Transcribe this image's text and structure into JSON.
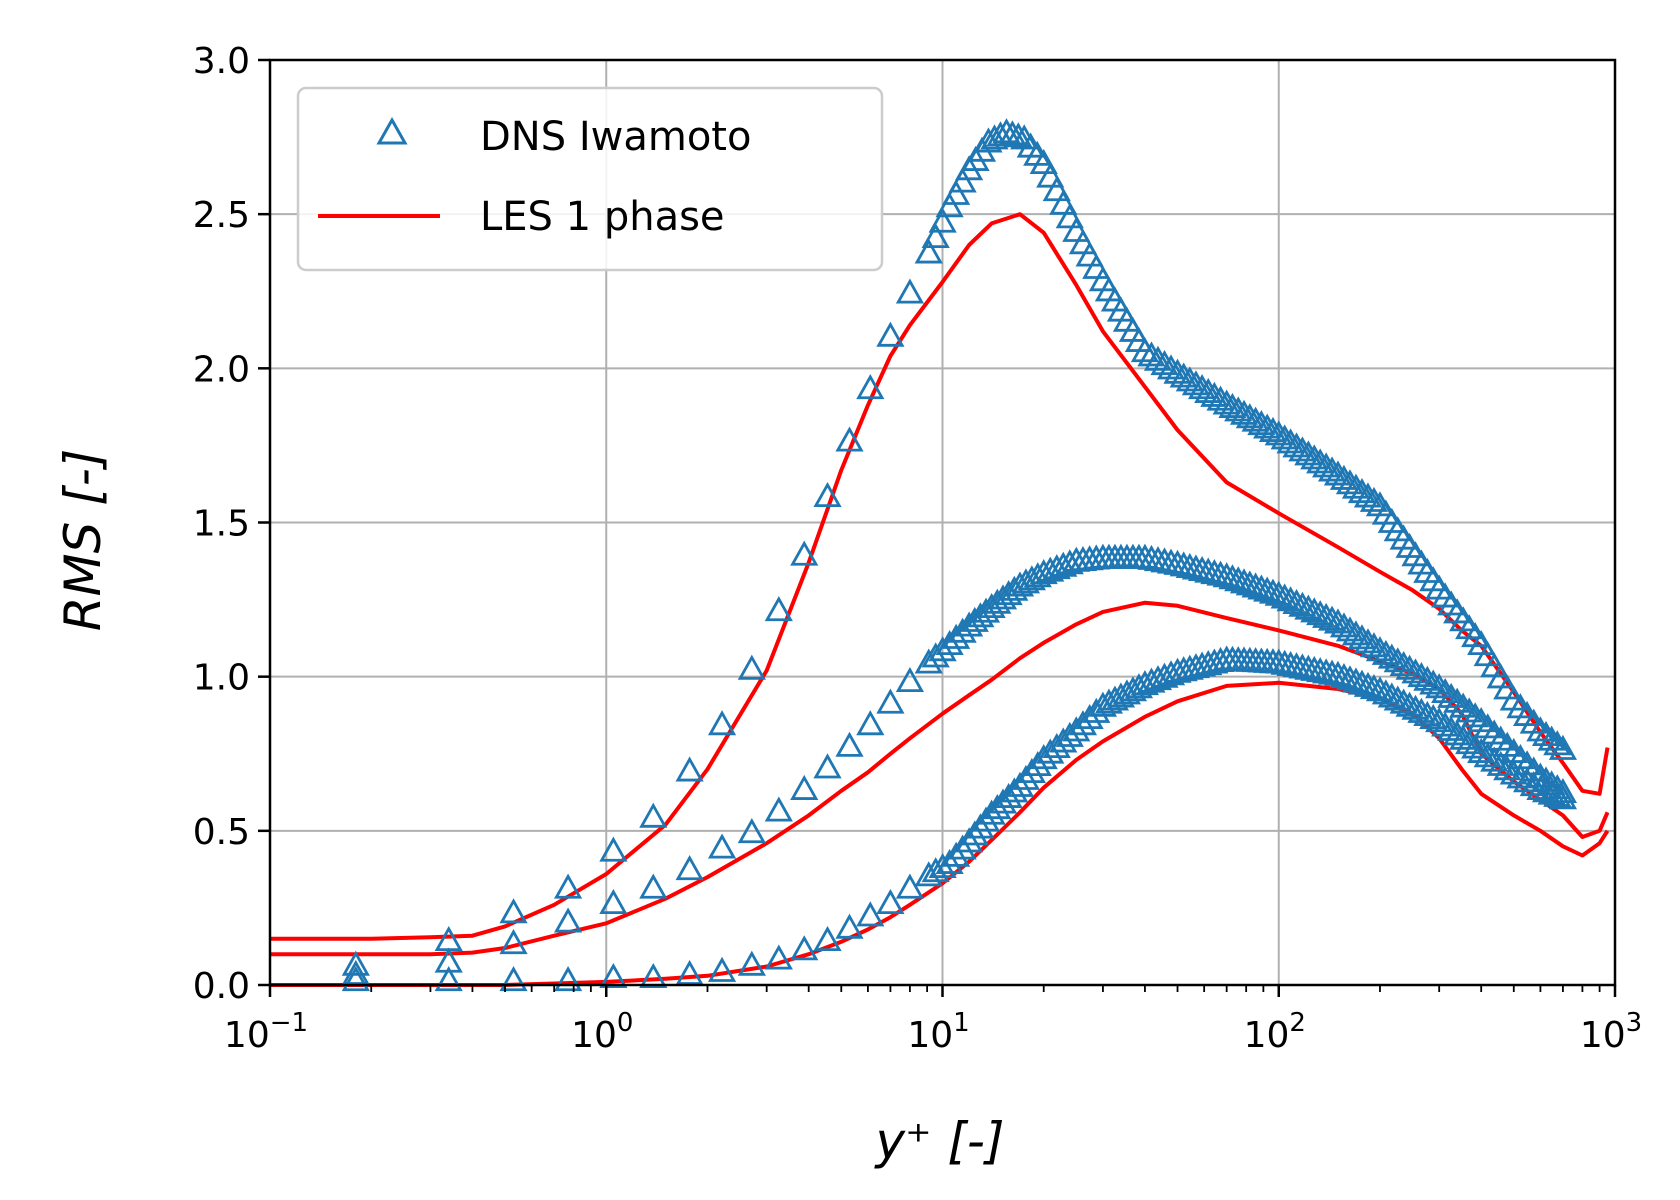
{
  "chart_data": {
    "type": "scatter",
    "xlabel": "y⁺ [-]",
    "ylabel": "RMS [-]",
    "x_scale": "log",
    "xlim": [
      0.1,
      1000
    ],
    "ylim": [
      0,
      3.0
    ],
    "grid": true,
    "legend_position": "top-left",
    "x_ticks": [
      {
        "base": "10",
        "exp": "−1",
        "value": 0.1
      },
      {
        "base": "10",
        "exp": "0",
        "value": 1
      },
      {
        "base": "10",
        "exp": "1",
        "value": 10
      },
      {
        "base": "10",
        "exp": "2",
        "value": 100
      },
      {
        "base": "10",
        "exp": "3",
        "value": 1000
      }
    ],
    "y_ticks": [
      "0.0",
      "0.5",
      "1.0",
      "1.5",
      "2.0",
      "2.5",
      "3.0"
    ],
    "legend": [
      {
        "label": "DNS Iwamoto",
        "marker": "triangle",
        "color": "#1f77b4"
      },
      {
        "label": "LES 1 phase",
        "marker": "line",
        "color": "#ff0000"
      }
    ],
    "series": [
      {
        "name": "DNS Iwamoto",
        "kind": "markers",
        "color": "#1f77b4",
        "curves": [
          {
            "x": [
              0.18,
              0.34,
              0.53,
              0.77,
              1.05,
              1.38,
              1.77,
              2.21,
              2.71,
              3.26,
              3.88,
              4.55,
              5.29,
              6.1,
              7.0,
              8.0,
              9.1,
              10.5,
              12.0,
              13.7,
              15.5,
              17.5,
              20,
              25,
              30,
              40,
              50,
              70,
              100,
              150,
              200,
              300,
              400,
              500,
              600,
              700
            ],
            "y": [
              0.06,
              0.14,
              0.23,
              0.31,
              0.43,
              0.54,
              0.69,
              0.84,
              1.02,
              1.21,
              1.39,
              1.58,
              1.76,
              1.93,
              2.1,
              2.24,
              2.37,
              2.52,
              2.64,
              2.73,
              2.76,
              2.74,
              2.66,
              2.44,
              2.28,
              2.05,
              1.98,
              1.88,
              1.78,
              1.65,
              1.55,
              1.28,
              1.1,
              0.92,
              0.82,
              0.76
            ]
          },
          {
            "x": [
              0.18,
              0.34,
              0.53,
              0.77,
              1.05,
              1.38,
              1.77,
              2.21,
              2.71,
              3.26,
              3.88,
              4.55,
              5.29,
              6.1,
              7.0,
              8.0,
              9.1,
              10.5,
              12.0,
              14,
              17,
              20,
              25,
              30,
              40,
              50,
              70,
              100,
              150,
              200,
              300,
              400,
              500,
              600,
              700
            ],
            "y": [
              0.03,
              0.07,
              0.13,
              0.2,
              0.26,
              0.31,
              0.37,
              0.44,
              0.49,
              0.56,
              0.63,
              0.7,
              0.77,
              0.84,
              0.91,
              0.98,
              1.04,
              1.1,
              1.16,
              1.22,
              1.29,
              1.33,
              1.37,
              1.38,
              1.38,
              1.36,
              1.32,
              1.26,
              1.17,
              1.08,
              0.96,
              0.85,
              0.75,
              0.67,
              0.62
            ]
          },
          {
            "x": [
              0.18,
              0.34,
              0.53,
              0.77,
              1.05,
              1.38,
              1.77,
              2.21,
              2.71,
              3.26,
              3.88,
              4.55,
              5.29,
              6.1,
              7.0,
              8.0,
              9.1,
              10.5,
              12,
              14,
              17,
              20,
              25,
              30,
              40,
              50,
              70,
              100,
              150,
              200,
              300,
              400,
              500,
              600,
              700
            ],
            "y": [
              0.01,
              0.01,
              0.01,
              0.01,
              0.02,
              0.02,
              0.03,
              0.04,
              0.06,
              0.08,
              0.11,
              0.14,
              0.18,
              0.22,
              0.26,
              0.31,
              0.35,
              0.39,
              0.46,
              0.55,
              0.64,
              0.73,
              0.82,
              0.9,
              0.97,
              1.01,
              1.05,
              1.04,
              1.0,
              0.95,
              0.85,
              0.75,
              0.68,
              0.63,
              0.6
            ]
          }
        ]
      },
      {
        "name": "LES 1 phase",
        "kind": "line",
        "color": "#ff0000",
        "curves": [
          {
            "x": [
              0.1,
              0.2,
              0.3,
              0.4,
              0.5,
              0.7,
              1.0,
              1.5,
              2,
              3,
              4,
              5,
              6,
              7,
              8,
              10,
              12,
              14,
              17,
              20,
              25,
              30,
              40,
              50,
              70,
              100,
              150,
              200,
              250,
              300,
              350,
              400,
              500,
              600,
              700,
              800,
              900,
              950
            ],
            "y": [
              0.15,
              0.15,
              0.155,
              0.16,
              0.19,
              0.26,
              0.36,
              0.52,
              0.7,
              1.02,
              1.37,
              1.67,
              1.88,
              2.04,
              2.14,
              2.28,
              2.4,
              2.47,
              2.5,
              2.44,
              2.27,
              2.12,
              1.94,
              1.8,
              1.63,
              1.53,
              1.42,
              1.34,
              1.28,
              1.22,
              1.15,
              1.1,
              0.95,
              0.82,
              0.72,
              0.63,
              0.62,
              0.77
            ]
          },
          {
            "x": [
              0.1,
              0.2,
              0.3,
              0.4,
              0.5,
              0.7,
              1.0,
              1.5,
              2,
              3,
              4,
              5,
              6,
              7,
              8,
              10,
              12,
              14,
              17,
              20,
              25,
              30,
              40,
              50,
              70,
              100,
              150,
              200,
              250,
              300,
              350,
              400,
              500,
              600,
              700,
              800,
              900,
              950
            ],
            "y": [
              0.1,
              0.1,
              0.1,
              0.105,
              0.12,
              0.16,
              0.2,
              0.28,
              0.35,
              0.46,
              0.55,
              0.63,
              0.69,
              0.75,
              0.8,
              0.88,
              0.94,
              0.99,
              1.06,
              1.11,
              1.17,
              1.21,
              1.24,
              1.23,
              1.19,
              1.15,
              1.1,
              1.05,
              1.01,
              0.96,
              0.88,
              0.75,
              0.66,
              0.6,
              0.55,
              0.48,
              0.5,
              0.56
            ]
          },
          {
            "x": [
              0.1,
              0.3,
              0.5,
              0.7,
              1.0,
              1.5,
              2,
              3,
              4,
              5,
              6,
              7,
              8,
              10,
              12,
              14,
              17,
              20,
              25,
              30,
              40,
              50,
              70,
              100,
              150,
              200,
              250,
              300,
              350,
              400,
              500,
              600,
              700,
              800,
              900,
              950
            ],
            "y": [
              0.0,
              0.0,
              0.0,
              0.005,
              0.01,
              0.02,
              0.03,
              0.06,
              0.1,
              0.14,
              0.18,
              0.22,
              0.26,
              0.33,
              0.4,
              0.47,
              0.56,
              0.64,
              0.73,
              0.79,
              0.87,
              0.92,
              0.97,
              0.98,
              0.96,
              0.93,
              0.88,
              0.8,
              0.7,
              0.62,
              0.55,
              0.5,
              0.45,
              0.42,
              0.46,
              0.5
            ]
          }
        ]
      }
    ]
  }
}
